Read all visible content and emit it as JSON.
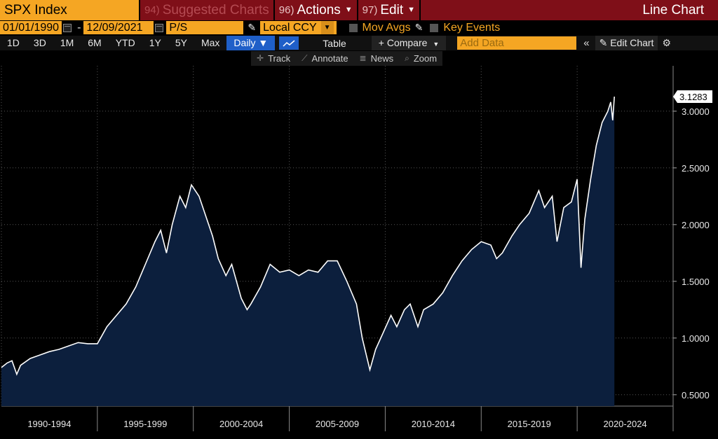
{
  "header": {
    "ticker": "SPX Index",
    "menus": [
      {
        "num": "94)",
        "label": "Suggested Charts",
        "dim": true,
        "caret": false
      },
      {
        "num": "96)",
        "label": "Actions",
        "dim": false,
        "caret": true
      },
      {
        "num": "97)",
        "label": "Edit",
        "dim": false,
        "caret": true
      }
    ],
    "chart_type": "Line Chart"
  },
  "controls": {
    "start_date": "01/01/1990",
    "date_sep": "-",
    "end_date": "12/09/2021",
    "field": "P/S",
    "currency": "Local CCY",
    "mov_avgs": "Mov Avgs",
    "key_events": "Key Events"
  },
  "toolbar": {
    "periods": [
      "1D",
      "3D",
      "1M",
      "6M",
      "YTD",
      "1Y",
      "5Y",
      "Max"
    ],
    "frequency": "Daily ▼",
    "table": "Table",
    "compare": "+ Compare",
    "add_data_placeholder": "Add Data",
    "collapse": "«",
    "edit_chart": "Edit Chart",
    "tools": [
      {
        "icon": "✛",
        "label": "Track",
        "name": "track"
      },
      {
        "icon": "⟋",
        "label": "Annotate",
        "name": "annotate"
      },
      {
        "icon": "≣",
        "label": "News",
        "name": "news"
      },
      {
        "icon": "⌕",
        "label": "Zoom",
        "name": "zoom"
      }
    ]
  },
  "colors": {
    "orange": "#f5a623",
    "dark_red": "#7f0f18",
    "blue": "#1f5fc8",
    "area_fill": "#0c1f3d",
    "line": "#ffffff"
  },
  "chart_data": {
    "type": "area",
    "title": "",
    "xlabel": "",
    "ylabel": "",
    "x_range": [
      1990.0,
      2025.0
    ],
    "ylim": [
      0.4,
      3.4
    ],
    "y_ticks": [
      0.5,
      1.0,
      1.5,
      2.0,
      2.5,
      3.0
    ],
    "y_tick_labels": [
      "0.5000",
      "1.0000",
      "1.5000",
      "2.0000",
      "2.5000",
      "3.0000"
    ],
    "x_categories": [
      "1990-1994",
      "1995-1999",
      "2000-2004",
      "2005-2009",
      "2010-2014",
      "2015-2019",
      "2020-2024"
    ],
    "x_category_bounds": [
      1990,
      1995,
      2000,
      2005,
      2010,
      2015,
      2020,
      2025
    ],
    "last_value_label": "3.1283",
    "grid": true,
    "series": [
      {
        "name": "",
        "points": [
          [
            1990.0,
            0.74
          ],
          [
            1990.3,
            0.78
          ],
          [
            1990.55,
            0.8
          ],
          [
            1990.8,
            0.68
          ],
          [
            1991.0,
            0.76
          ],
          [
            1991.5,
            0.82
          ],
          [
            1992.0,
            0.85
          ],
          [
            1992.5,
            0.88
          ],
          [
            1993.0,
            0.9
          ],
          [
            1993.5,
            0.93
          ],
          [
            1994.0,
            0.96
          ],
          [
            1994.5,
            0.95
          ],
          [
            1995.0,
            0.95
          ],
          [
            1995.5,
            1.1
          ],
          [
            1996.0,
            1.2
          ],
          [
            1996.5,
            1.3
          ],
          [
            1997.0,
            1.45
          ],
          [
            1997.5,
            1.65
          ],
          [
            1998.0,
            1.85
          ],
          [
            1998.3,
            1.95
          ],
          [
            1998.6,
            1.75
          ],
          [
            1998.9,
            2.0
          ],
          [
            1999.3,
            2.25
          ],
          [
            1999.6,
            2.15
          ],
          [
            1999.9,
            2.35
          ],
          [
            2000.3,
            2.25
          ],
          [
            2000.7,
            2.05
          ],
          [
            2001.0,
            1.9
          ],
          [
            2001.3,
            1.7
          ],
          [
            2001.7,
            1.55
          ],
          [
            2002.0,
            1.65
          ],
          [
            2002.5,
            1.35
          ],
          [
            2002.8,
            1.25
          ],
          [
            2003.0,
            1.3
          ],
          [
            2003.5,
            1.45
          ],
          [
            2004.0,
            1.65
          ],
          [
            2004.5,
            1.58
          ],
          [
            2005.0,
            1.6
          ],
          [
            2005.5,
            1.55
          ],
          [
            2006.0,
            1.6
          ],
          [
            2006.5,
            1.58
          ],
          [
            2007.0,
            1.68
          ],
          [
            2007.5,
            1.68
          ],
          [
            2008.0,
            1.5
          ],
          [
            2008.5,
            1.3
          ],
          [
            2008.8,
            1.0
          ],
          [
            2009.2,
            0.72
          ],
          [
            2009.5,
            0.9
          ],
          [
            2009.9,
            1.05
          ],
          [
            2010.3,
            1.2
          ],
          [
            2010.6,
            1.1
          ],
          [
            2011.0,
            1.25
          ],
          [
            2011.3,
            1.3
          ],
          [
            2011.7,
            1.1
          ],
          [
            2012.0,
            1.25
          ],
          [
            2012.5,
            1.3
          ],
          [
            2013.0,
            1.4
          ],
          [
            2013.5,
            1.55
          ],
          [
            2014.0,
            1.68
          ],
          [
            2014.5,
            1.78
          ],
          [
            2015.0,
            1.85
          ],
          [
            2015.5,
            1.82
          ],
          [
            2015.8,
            1.7
          ],
          [
            2016.1,
            1.75
          ],
          [
            2016.6,
            1.9
          ],
          [
            2017.0,
            2.0
          ],
          [
            2017.5,
            2.1
          ],
          [
            2018.0,
            2.3
          ],
          [
            2018.3,
            2.15
          ],
          [
            2018.7,
            2.25
          ],
          [
            2018.95,
            1.85
          ],
          [
            2019.3,
            2.15
          ],
          [
            2019.7,
            2.2
          ],
          [
            2020.0,
            2.4
          ],
          [
            2020.2,
            1.62
          ],
          [
            2020.4,
            2.05
          ],
          [
            2020.7,
            2.4
          ],
          [
            2021.0,
            2.7
          ],
          [
            2021.3,
            2.9
          ],
          [
            2021.6,
            3.0
          ],
          [
            2021.75,
            3.08
          ],
          [
            2021.85,
            2.92
          ],
          [
            2021.94,
            3.1283
          ]
        ]
      }
    ]
  }
}
